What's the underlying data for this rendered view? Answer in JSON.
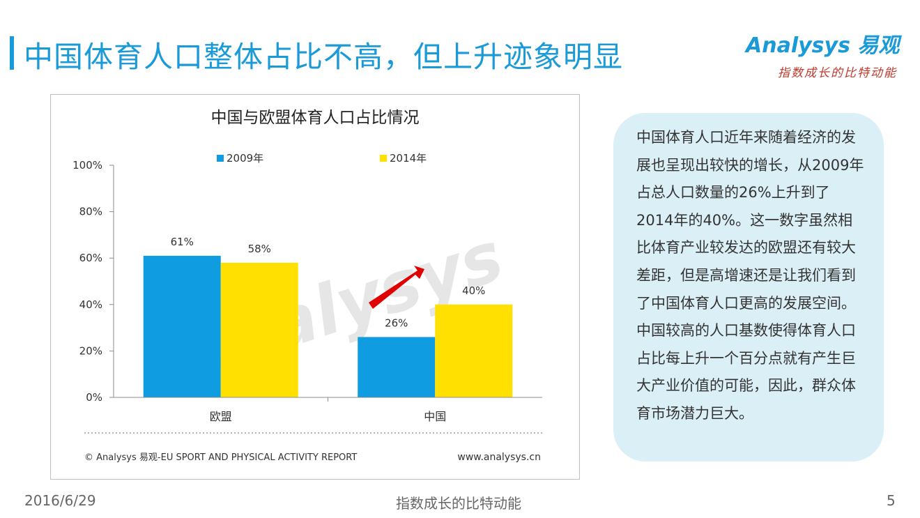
{
  "slide": {
    "title": "中国体育人口整体占比不高，但上升迹象明显",
    "logo_text": "Analysys 易观",
    "logo_slogan": "指数成长的比特动能",
    "note": "中国体育人口近年来随着经济的发展也呈现出较快的增长，从2009年占总人口数量的26%上升到了2014年的40%。这一数字虽然相比体育产业较发达的欧盟还有较大差距，但是高增速还是让我们看到了中国体育人口更高的发展空间。中国较高的人口基数使得体育人口占比每上升一个百分点就有产生巨大产业价值的可能，因此，群众体育市场潜力巨大。",
    "footer_date": "2016/6/29",
    "footer_slogan": "指数成长的比特动能",
    "page_number": "5",
    "accent_color": "#1a9ad6"
  },
  "chart_data": {
    "type": "bar",
    "title": "中国与欧盟体育人口占比情况",
    "categories": [
      "欧盟",
      "中国"
    ],
    "series": [
      {
        "name": "2009年",
        "values": [
          61,
          26
        ],
        "labels": [
          "61%",
          "26%"
        ],
        "color": "#0f9ce0"
      },
      {
        "name": "2014年",
        "values": [
          58,
          40
        ],
        "labels": [
          "58%",
          "40%"
        ],
        "color": "#ffe000"
      }
    ],
    "yticks": [
      "0%",
      "20%",
      "40%",
      "60%",
      "80%",
      "100%"
    ],
    "ylim": [
      0,
      100
    ],
    "legend": "top",
    "grid": false,
    "watermark": "Analysys",
    "source": "© Analysys 易观-EU SPORT AND PHYSICAL ACTIVITY REPORT",
    "website": "www.analysys.cn"
  }
}
